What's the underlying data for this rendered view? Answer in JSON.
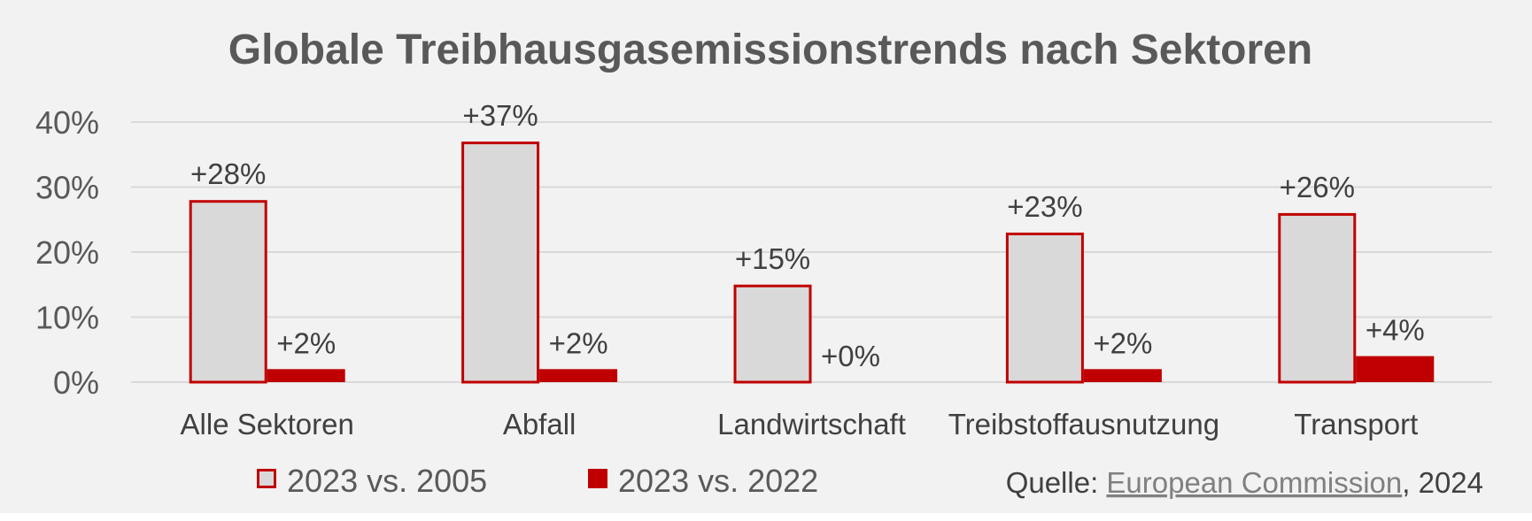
{
  "chart_data": {
    "type": "bar",
    "title": "Globale Treibhausgasemissionstrends nach Sektoren",
    "categories": [
      "Alle Sektoren",
      "Abfall",
      "Landwirtschaft",
      "Treibstoffausnutzung",
      "Transport"
    ],
    "series": [
      {
        "name": "2023 vs. 2005",
        "values": [
          28,
          37,
          15,
          23,
          26
        ],
        "labels": [
          "+28%",
          "+37%",
          "+15%",
          "+23%",
          "+26%"
        ],
        "fill": "#d9d9d9",
        "stroke": "#c00000"
      },
      {
        "name": "2023 vs. 2022",
        "values": [
          2,
          2,
          0,
          2,
          4
        ],
        "labels": [
          "+2%",
          "+2%",
          "+0%",
          "+2%",
          "+4%"
        ],
        "fill": "#c00000",
        "stroke": "#c00000"
      }
    ],
    "yticks": [
      "0%",
      "10%",
      "20%",
      "30%",
      "40%"
    ],
    "ylim": [
      0,
      40
    ],
    "xlabel": "",
    "ylabel": "",
    "grid": true,
    "legend_position": "bottom-left"
  },
  "source": {
    "prefix": "Quelle: ",
    "link_text": "European Commission",
    "suffix": ", 2024"
  },
  "colors": {
    "background": "#f2f2f2",
    "accent": "#c00000",
    "bar_light": "#d9d9d9",
    "text": "#595959"
  }
}
